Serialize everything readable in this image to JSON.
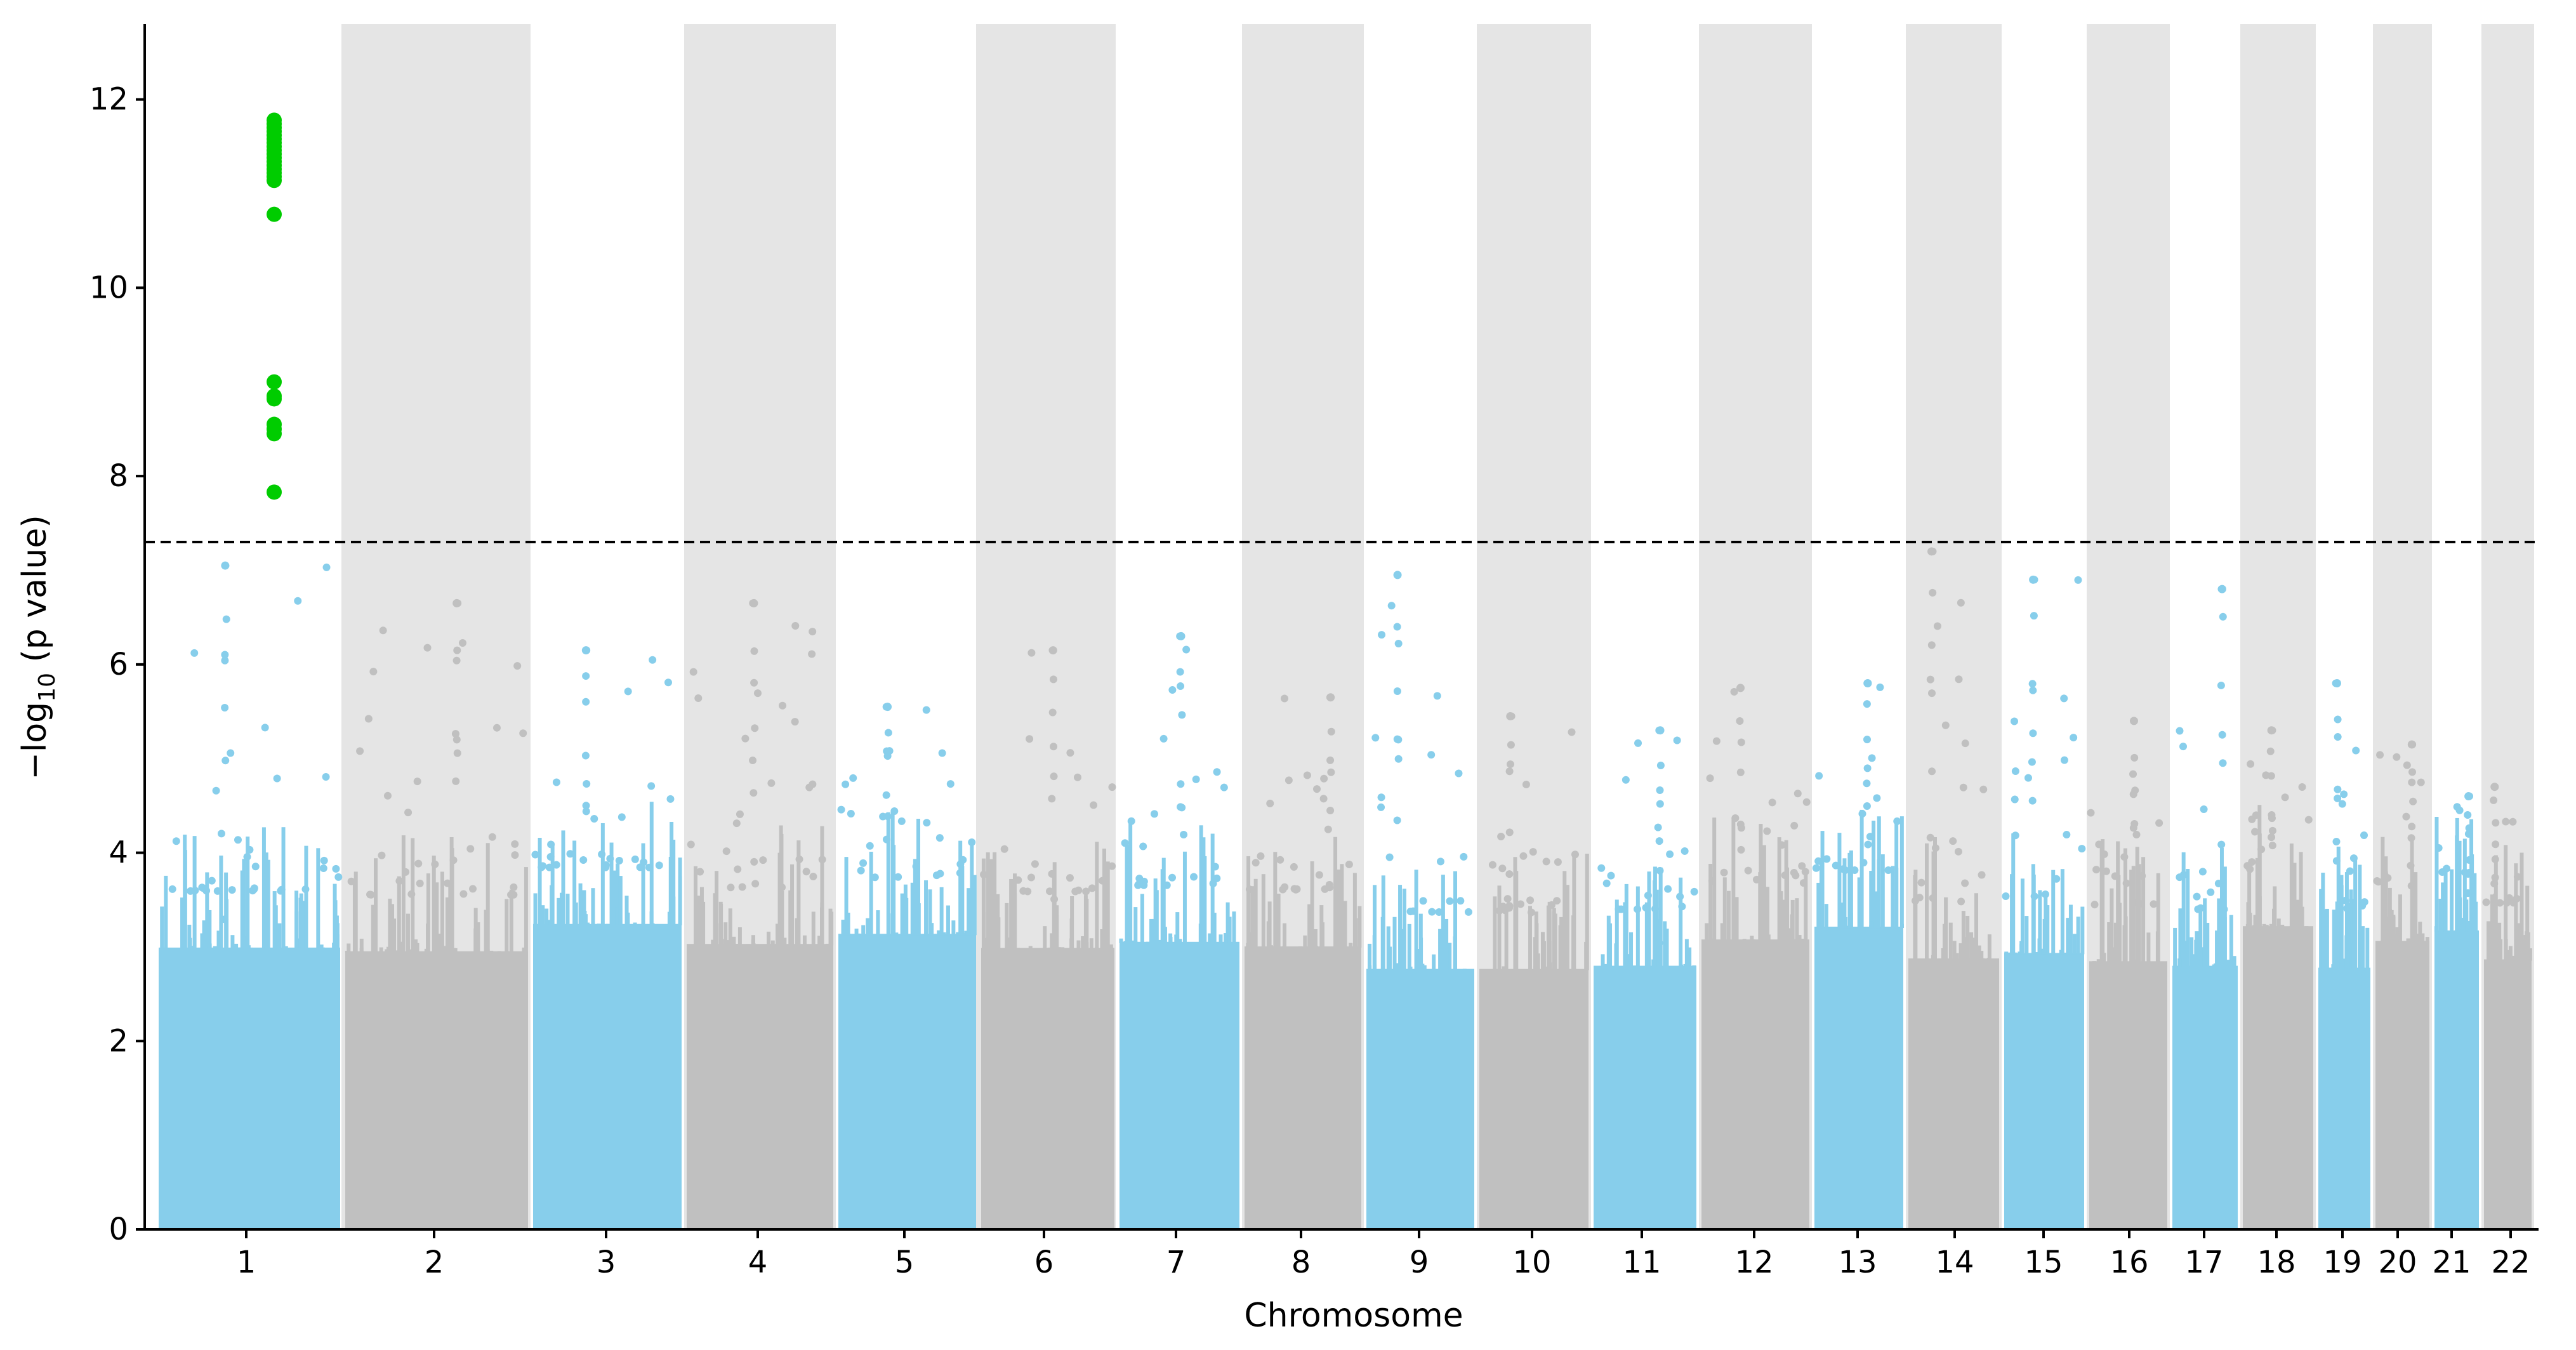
{
  "chart_data": {
    "type": "scatter",
    "title": "",
    "xlabel": "Chromosome",
    "ylabel_main": "−log",
    "ylabel_sub": "10",
    "ylabel_rest": " (p value)",
    "ylim": [
      0,
      12.8
    ],
    "yticks": [
      0,
      2,
      4,
      6,
      8,
      10,
      12
    ],
    "significance_threshold": 7.3,
    "colors": {
      "odd_chromosome": "#87CEEB",
      "even_chromosome": "#C0C0C0",
      "band": "#E5E5E5",
      "significant": "#00CC00",
      "threshold_line": "#000000"
    },
    "chromosomes": [
      {
        "label": "1",
        "peak": 7.05
      },
      {
        "label": "2",
        "peak": 6.65
      },
      {
        "label": "3",
        "peak": 6.15
      },
      {
        "label": "4",
        "peak": 6.65
      },
      {
        "label": "5",
        "peak": 5.55
      },
      {
        "label": "6",
        "peak": 6.15
      },
      {
        "label": "7",
        "peak": 6.3
      },
      {
        "label": "8",
        "peak": 5.65
      },
      {
        "label": "9",
        "peak": 6.95
      },
      {
        "label": "10",
        "peak": 5.45
      },
      {
        "label": "11",
        "peak": 5.3
      },
      {
        "label": "12",
        "peak": 5.75
      },
      {
        "label": "13",
        "peak": 5.8
      },
      {
        "label": "14",
        "peak": 7.2
      },
      {
        "label": "15",
        "peak": 6.9
      },
      {
        "label": "16",
        "peak": 5.4
      },
      {
        "label": "17",
        "peak": 6.8
      },
      {
        "label": "18",
        "peak": 5.3
      },
      {
        "label": "19",
        "peak": 5.8
      },
      {
        "label": "20",
        "peak": 5.15
      },
      {
        "label": "21",
        "peak": 4.6
      },
      {
        "label": "22",
        "peak": 4.7
      }
    ],
    "significant_points": {
      "chromosome": "1",
      "y": [
        11.78,
        11.74,
        11.7,
        11.66,
        11.62,
        11.58,
        11.54,
        11.5,
        11.46,
        11.42,
        11.38,
        11.34,
        11.3,
        11.26,
        11.22,
        11.18,
        11.14,
        10.78,
        9.0,
        8.85,
        8.82,
        8.55,
        8.5,
        8.45,
        7.83
      ]
    }
  }
}
